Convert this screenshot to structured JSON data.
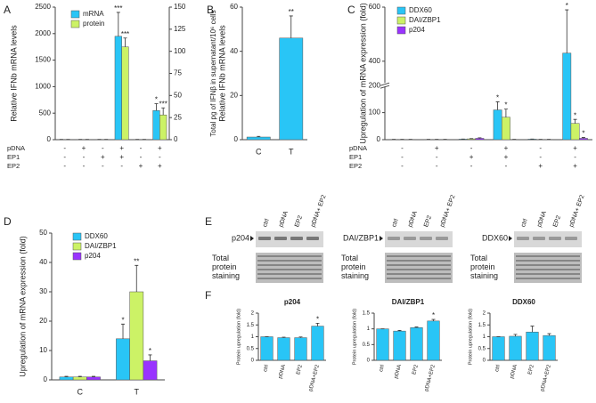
{
  "chart_data": [
    {
      "type": "bar",
      "panel": "A",
      "ylabel": "Relative IFNb mRNA levels",
      "y2label": "Total pg of IFNβ in supernatant/10⁶ cells",
      "conditions": [
        {
          "name": "pDNA",
          "values": [
            "-",
            "+",
            "-",
            "+",
            "-",
            "+"
          ]
        },
        {
          "name": "EP1",
          "values": [
            "-",
            "-",
            "+",
            "+",
            "-",
            "-"
          ]
        },
        {
          "name": "EP2",
          "values": [
            "-",
            "-",
            "-",
            "-",
            "+",
            "+"
          ]
        }
      ],
      "series": [
        {
          "name": "mRNA",
          "color": "#29c5f6",
          "values": [
            5,
            5,
            5,
            1950,
            5,
            550
          ],
          "errors": [
            0,
            0,
            0,
            450,
            0,
            130
          ],
          "annotations": [
            null,
            null,
            null,
            "***",
            null,
            "*"
          ]
        },
        {
          "name": "protein",
          "color": "#ccf266",
          "axis": "y2",
          "values": [
            0.3,
            0.3,
            0.3,
            105,
            0.3,
            28
          ],
          "errors": [
            0,
            0,
            0,
            10,
            0,
            8
          ],
          "annotations": [
            null,
            null,
            null,
            "***",
            null,
            "***"
          ]
        }
      ],
      "ylim": [
        0,
        2500
      ],
      "yticks": [
        0,
        500,
        1000,
        1500,
        2000,
        2500
      ],
      "y2lim": [
        0,
        150
      ],
      "y2ticks": [
        0,
        25,
        50,
        75,
        100,
        125,
        150
      ],
      "legend": "upper left"
    },
    {
      "type": "bar",
      "panel": "B",
      "ylabel": "Relative IFNb mRNA levels",
      "categories": [
        "C",
        "T"
      ],
      "series": [
        {
          "color": "#29c5f6",
          "values": [
            1.2,
            46
          ],
          "errors": [
            0.3,
            10
          ],
          "annotations": [
            null,
            "**"
          ]
        }
      ],
      "ylim": [
        0,
        60
      ],
      "yticks": [
        0,
        20,
        40,
        60
      ]
    },
    {
      "type": "bar",
      "panel": "C",
      "ylabel": "Upregulation of mRNA expression (fold)",
      "conditions": [
        {
          "name": "pDNA",
          "values": [
            "-",
            "+",
            "-",
            "+",
            "-",
            "+"
          ]
        },
        {
          "name": "EP1",
          "values": [
            "-",
            "-",
            "+",
            "+",
            "-",
            "-"
          ]
        },
        {
          "name": "EP2",
          "values": [
            "-",
            "-",
            "-",
            "-",
            "+",
            "+"
          ]
        }
      ],
      "series": [
        {
          "name": "DDX60",
          "color": "#29c5f6",
          "values": [
            1,
            1,
            2,
            110,
            2,
            430
          ],
          "errors": [
            0.2,
            0.2,
            0.5,
            30,
            0.5,
            160
          ],
          "annotations": [
            null,
            null,
            null,
            "*",
            null,
            "*"
          ]
        },
        {
          "name": "DAI/ZBP1",
          "color": "#ccf266",
          "values": [
            1,
            1,
            3,
            83,
            1,
            60
          ],
          "errors": [
            0.2,
            0.2,
            1,
            30,
            0.2,
            15
          ],
          "annotations": [
            null,
            null,
            null,
            "*",
            null,
            "*"
          ]
        },
        {
          "name": "p204",
          "color": "#9933ff",
          "values": [
            1,
            1,
            5,
            1,
            1,
            5
          ],
          "errors": [
            0.2,
            0.2,
            2,
            0.2,
            0.2,
            3
          ],
          "annotations": [
            null,
            null,
            null,
            null,
            null,
            "*"
          ]
        }
      ],
      "ylim": [
        0,
        600
      ],
      "ybreak": [
        200,
        310
      ],
      "yticks": [
        0,
        100,
        200,
        400,
        600
      ],
      "legend": "upper left"
    },
    {
      "type": "bar",
      "panel": "D",
      "ylabel": "Upregulation of mRNA expression (fold)",
      "categories": [
        "C",
        "T"
      ],
      "series": [
        {
          "name": "DDX60",
          "color": "#29c5f6",
          "values": [
            1,
            14
          ],
          "errors": [
            0.2,
            5
          ],
          "annotations": [
            null,
            "*"
          ]
        },
        {
          "name": "DAI/ZBP1",
          "color": "#ccf266",
          "values": [
            1,
            30
          ],
          "errors": [
            0.2,
            9
          ],
          "annotations": [
            null,
            "**"
          ]
        },
        {
          "name": "p204",
          "color": "#9933ff",
          "values": [
            1,
            6.5
          ],
          "errors": [
            0.2,
            2
          ],
          "annotations": [
            null,
            "*"
          ]
        }
      ],
      "ylim": [
        0,
        50
      ],
      "yticks": [
        0,
        10,
        20,
        30,
        40,
        50
      ],
      "legend": "upper left"
    },
    {
      "type": "bar",
      "panel": "F",
      "title": "p204",
      "ylabel": "Protein upregulation (fold)",
      "categories": [
        "ctrl",
        "pDNA",
        "EP2",
        "pDNA+EP2"
      ],
      "series": [
        {
          "color": "#29c5f6",
          "values": [
            1,
            0.96,
            0.96,
            1.45
          ],
          "errors": [
            0,
            0.02,
            0.03,
            0.12
          ],
          "annotations": [
            null,
            null,
            null,
            "*"
          ]
        }
      ],
      "ylim": [
        0,
        2
      ],
      "yticks": [
        0,
        0.5,
        1,
        1.5,
        2
      ]
    },
    {
      "type": "bar",
      "title": "DAI/ZBP1",
      "ylabel": "Protein upregulation (fold)",
      "categories": [
        "ctrl",
        "pDNA",
        "EP2",
        "pDNA+EP2"
      ],
      "series": [
        {
          "color": "#29c5f6",
          "values": [
            1,
            0.93,
            1.04,
            1.25
          ],
          "errors": [
            0,
            0.02,
            0.02,
            0.05
          ],
          "annotations": [
            null,
            null,
            null,
            "*"
          ]
        }
      ],
      "ylim": [
        0,
        1.5
      ],
      "yticks": [
        0,
        0.5,
        1,
        1.5
      ]
    },
    {
      "type": "bar",
      "title": "DDX60",
      "ylabel": "Protein upregulation (fold)",
      "categories": [
        "ctrl",
        "pDNA",
        "EP2",
        "pDNA+EP2"
      ],
      "series": [
        {
          "color": "#29c5f6",
          "values": [
            1,
            1.02,
            1.2,
            1.05
          ],
          "errors": [
            0,
            0.08,
            0.25,
            0.08
          ],
          "annotations": [
            null,
            null,
            null,
            null
          ]
        }
      ],
      "ylim": [
        0,
        2
      ],
      "yticks": [
        0,
        0.5,
        1,
        1.5,
        2
      ]
    }
  ],
  "blots": {
    "panel": "E",
    "items": [
      {
        "label": "p204",
        "lanes": [
          "ctrl",
          "pDNA",
          "EP2",
          "pDNA+ EP2"
        ],
        "stain": "Total protein staining"
      },
      {
        "label": "DAI/ZBP1",
        "lanes": [
          "ctrl",
          "pDNA",
          "EP2",
          "pDNA+ EP2"
        ],
        "stain": "Total protein staining"
      },
      {
        "label": "DDX60",
        "lanes": [
          "ctrl",
          "pDNA",
          "EP2",
          "pDNA+ EP2"
        ],
        "stain": "Total protein staining"
      }
    ]
  }
}
